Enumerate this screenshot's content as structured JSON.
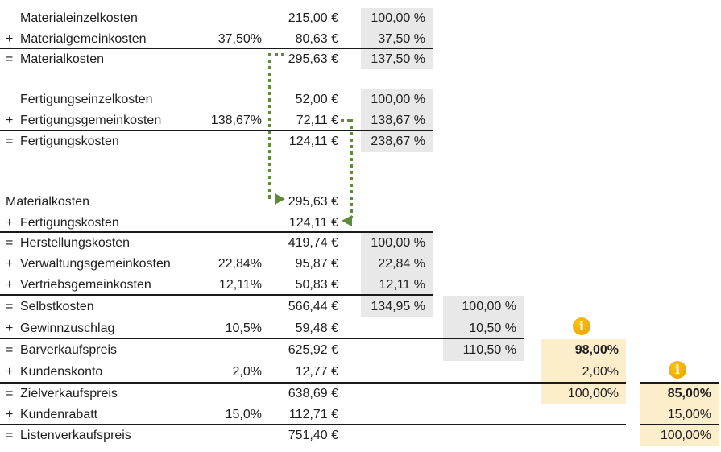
{
  "rows": [
    {
      "op": "",
      "indent": true,
      "label": "Materialeinzelkosten",
      "rate": "",
      "amount": "215,00 €",
      "pct1": "100,00 %",
      "pct2": "",
      "pct3": "",
      "pct4": ""
    },
    {
      "op": "+",
      "indent": false,
      "label": "Materialgemeinkosten",
      "rate": "37,50%",
      "amount": "80,63 €",
      "pct1": "37,50 %",
      "pct2": "",
      "pct3": "",
      "pct4": ""
    },
    {
      "op": "=",
      "indent": false,
      "label": "Materialkosten",
      "rate": "",
      "amount": "295,63 €",
      "pct1": "137,50 %",
      "pct2": "",
      "pct3": "",
      "pct4": ""
    },
    {
      "op": "",
      "indent": true,
      "label": "Fertigungseinzelkosten",
      "rate": "",
      "amount": "52,00 €",
      "pct1": "100,00 %",
      "pct2": "",
      "pct3": "",
      "pct4": ""
    },
    {
      "op": "+",
      "indent": false,
      "label": "Fertigungsgemeinkosten",
      "rate": "138,67%",
      "amount": "72,11 €",
      "pct1": "138,67 %",
      "pct2": "",
      "pct3": "",
      "pct4": ""
    },
    {
      "op": "=",
      "indent": false,
      "label": "Fertigungskosten",
      "rate": "",
      "amount": "124,11 €",
      "pct1": "238,67 %",
      "pct2": "",
      "pct3": "",
      "pct4": ""
    },
    {
      "op": "",
      "indent": false,
      "label": "Materialkosten",
      "rate": "",
      "amount": "295,63 €",
      "pct1": "",
      "pct2": "",
      "pct3": "",
      "pct4": ""
    },
    {
      "op": "+",
      "indent": false,
      "label": "Fertigungskosten",
      "rate": "",
      "amount": "124,11 €",
      "pct1": "",
      "pct2": "",
      "pct3": "",
      "pct4": ""
    },
    {
      "op": "=",
      "indent": false,
      "label": "Herstellungskosten",
      "rate": "",
      "amount": "419,74 €",
      "pct1": "100,00 %",
      "pct2": "",
      "pct3": "",
      "pct4": ""
    },
    {
      "op": "+",
      "indent": false,
      "label": "Verwaltungsgemeinkosten",
      "rate": "22,84%",
      "amount": "95,87 €",
      "pct1": "22,84 %",
      "pct2": "",
      "pct3": "",
      "pct4": ""
    },
    {
      "op": "+",
      "indent": false,
      "label": "Vertriebsgemeinkosten",
      "rate": "12,11%",
      "amount": "50,83 €",
      "pct1": "12,11 %",
      "pct2": "",
      "pct3": "",
      "pct4": ""
    },
    {
      "op": "=",
      "indent": false,
      "label": "Selbstkosten",
      "rate": "",
      "amount": "566,44 €",
      "pct1": "134,95 %",
      "pct2": "100,00 %",
      "pct3": "",
      "pct4": ""
    },
    {
      "op": "+",
      "indent": false,
      "label": "Gewinnzuschlag",
      "rate": "10,5%",
      "amount": "59,48 €",
      "pct1": "",
      "pct2": "10,50 %",
      "pct3": "",
      "pct4": ""
    },
    {
      "op": "=",
      "indent": false,
      "label": "Barverkaufspreis",
      "rate": "",
      "amount": "625,92 €",
      "pct1": "",
      "pct2": "110,50 %",
      "pct3": "98,00%",
      "pct3_bold": true,
      "pct4": ""
    },
    {
      "op": "+",
      "indent": false,
      "label": "Kundenskonto",
      "rate": "2,0%",
      "amount": "12,77 €",
      "pct1": "",
      "pct2": "",
      "pct3": "2,00%",
      "pct4": ""
    },
    {
      "op": "=",
      "indent": false,
      "label": "Zielverkaufspreis",
      "rate": "",
      "amount": "638,69 €",
      "pct1": "",
      "pct2": "",
      "pct3": "100,00%",
      "pct4": "85,00%",
      "pct4_bold": true
    },
    {
      "op": "+",
      "indent": false,
      "label": "Kundenrabatt",
      "rate": "15,0%",
      "amount": "112,71 €",
      "pct1": "",
      "pct2": "",
      "pct3": "",
      "pct4": "15,00%"
    },
    {
      "op": "=",
      "indent": false,
      "label": "Listenverkaufspreis",
      "rate": "",
      "amount": "751,40 €",
      "pct1": "",
      "pct2": "",
      "pct3": "",
      "pct4": "100,00%"
    }
  ],
  "info_icons": [
    {
      "glyph": "i",
      "attached_to": "Barverkaufspreis 98,00%"
    },
    {
      "glyph": "i",
      "attached_to": "Zielverkaufspreis 85,00%"
    }
  ],
  "colors": {
    "highlight_gray": "#e9e8e8",
    "highlight_yellow": "#fdeecb",
    "icon_amber": "#f2ad02",
    "arrow_green": "#5e8a3b",
    "line": "#1a1a1a",
    "text": "#1f1f1f"
  }
}
